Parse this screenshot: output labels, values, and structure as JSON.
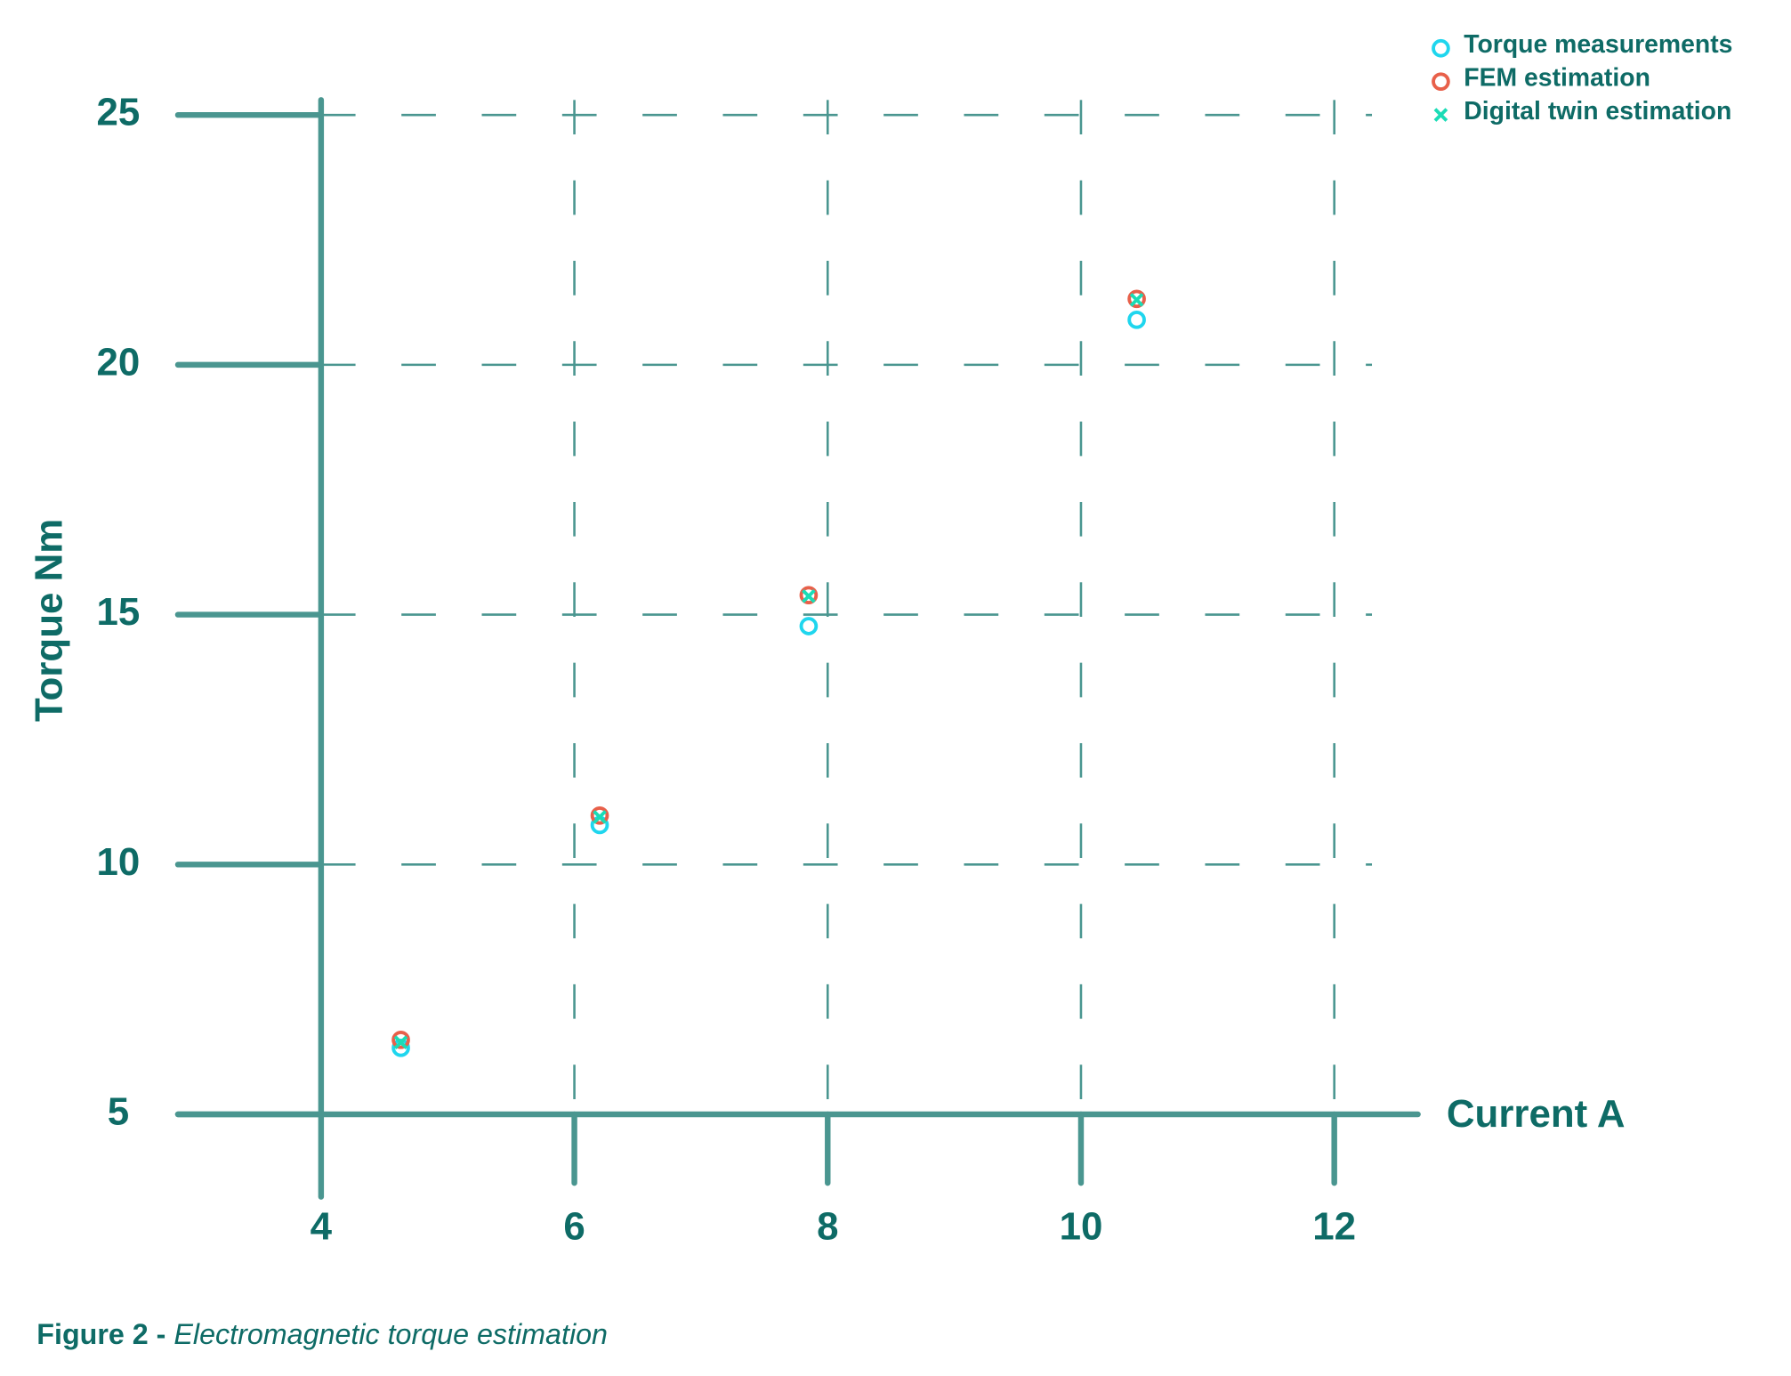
{
  "chart_data": {
    "type": "scatter",
    "x_label": "Current A",
    "y_label": "Torque Nm",
    "caption": {
      "label": "Figure 2 -",
      "text": "Electromagnetic torque estimation"
    },
    "xlim": [
      2.87,
      12.66
    ],
    "ylim": [
      3.35,
      25.3
    ],
    "xticks": [
      4,
      6,
      8,
      10,
      12
    ],
    "yticks": [
      5,
      10,
      15,
      20,
      25
    ],
    "grid": true,
    "legend": "top-right",
    "series": [
      {
        "name": "Torque measurements",
        "color": "#1fd6ee",
        "marker": "circle",
        "x": [
          4.63,
          6.2,
          7.85,
          10.44
        ],
        "values": [
          6.33,
          10.79,
          14.77,
          20.9
        ]
      },
      {
        "name": "FEM estimation",
        "color": "#e8604a",
        "marker": "circle",
        "x": [
          4.63,
          6.2,
          7.85,
          10.44
        ],
        "values": [
          6.49,
          10.98,
          15.39,
          21.32
        ]
      },
      {
        "name": "Digital twin estimation",
        "color": "#1adcb6",
        "marker": "x",
        "x": [
          4.63,
          6.2,
          7.85,
          10.44
        ],
        "values": [
          6.44,
          10.95,
          15.37,
          21.3
        ]
      }
    ]
  }
}
